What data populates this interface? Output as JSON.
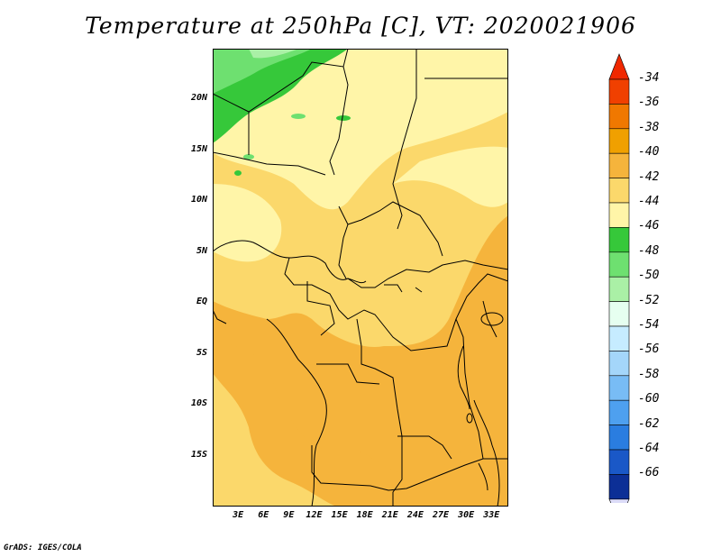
{
  "title": "Temperature at 250hPa [C], VT: 2020021906",
  "footer": "GrADS: IGES/COLA",
  "map": {
    "lat_range": [
      -20,
      25
    ],
    "lon_range": [
      0,
      35
    ],
    "lat_labels": [
      "20N",
      "15N",
      "10N",
      "5N",
      "EQ",
      "5S",
      "10S",
      "15S"
    ],
    "lon_labels": [
      "3E",
      "6E",
      "9E",
      "12E",
      "15E",
      "18E",
      "21E",
      "24E",
      "27E",
      "30E",
      "33E"
    ]
  },
  "colorbar": {
    "labels": [
      "-34",
      "-36",
      "-38",
      "-40",
      "-42",
      "-44",
      "-46",
      "-48",
      "-50",
      "-52",
      "-54",
      "-56",
      "-58",
      "-60",
      "-62",
      "-64",
      "-66"
    ],
    "colors": [
      "#f04000",
      "#f07800",
      "#f0a000",
      "#f5b43c",
      "#fbd86b",
      "#fff5a8",
      "#36c83a",
      "#6ee070",
      "#aaf0a6",
      "#e6fff0",
      "#c6ecff",
      "#a4d6fa",
      "#78bcf5",
      "#4ea0ef",
      "#2a7de0",
      "#1a58c7",
      "#0c2f96"
    ],
    "top_arrow_color": "#f02800",
    "bottom_arrow_color": "#dcdcf8"
  },
  "field_colors": {
    "t_minus_36_38": "#f5b43c",
    "t_minus_38_40": "#fbd86b",
    "t_minus_40_42": "#fff5a8",
    "t_minus_42_44": "#36c83a",
    "t_minus_44_46": "#6ee070"
  }
}
